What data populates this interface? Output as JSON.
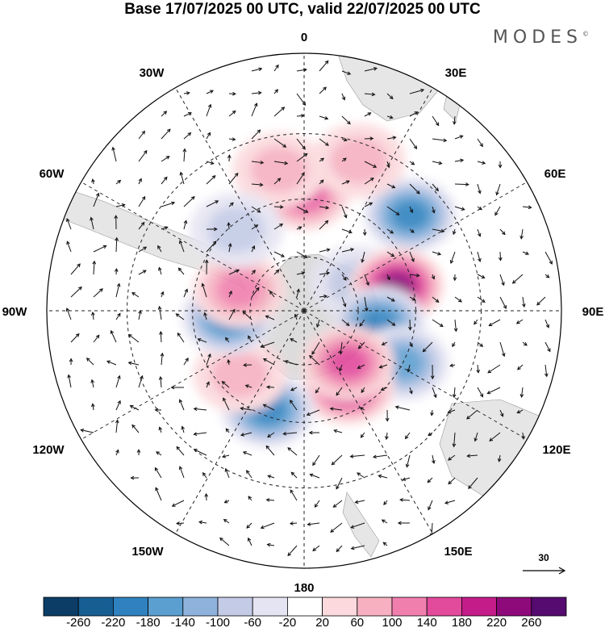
{
  "title": "Base 17/07/2025 00 UTC, valid 22/07/2025 00 UTC",
  "brand": "MODES",
  "brand_mark": "©",
  "meridian_labels": {
    "m0": "0",
    "m30e": "30E",
    "m60e": "60E",
    "m90e": "90E",
    "m120e": "120E",
    "m150e": "150E",
    "m180": "180",
    "m150w": "150W",
    "m120w": "120W",
    "m90w": "90W",
    "m60w": "60W",
    "m30w": "30W"
  },
  "reference_vector": {
    "label": "30"
  },
  "colorbar": {
    "ticks": [
      "-260",
      "-220",
      "-180",
      "-140",
      "-100",
      "-60",
      "-20",
      "20",
      "60",
      "100",
      "140",
      "180",
      "220",
      "260"
    ],
    "colors": [
      "#0b3d66",
      "#175e93",
      "#2f82bf",
      "#5b9fd0",
      "#8fb2dc",
      "#c3cbe6",
      "#e5e4f2",
      "#ffffff",
      "#fbd9dc",
      "#f6b0c0",
      "#f07fae",
      "#e24a9c",
      "#c41c88",
      "#8e0a7a",
      "#560b70"
    ]
  },
  "map": {
    "projection": "south-polar-stereographic",
    "land_color": "#d9d9d9",
    "anomaly_blobs": [
      {
        "lon": 48,
        "lat": -40,
        "value": -180
      },
      {
        "lon": 62,
        "lat": -68,
        "value": -60
      },
      {
        "lon": 75,
        "lat": -55,
        "value": 220
      },
      {
        "lon": 100,
        "lat": -62,
        "value": -180
      },
      {
        "lon": 118,
        "lat": -50,
        "value": -140
      },
      {
        "lon": 150,
        "lat": -58,
        "value": 180
      },
      {
        "lon": 140,
        "lat": -65,
        "value": 140
      },
      {
        "lon": -160,
        "lat": -52,
        "value": -180
      },
      {
        "lon": -135,
        "lat": -57,
        "value": 60
      },
      {
        "lon": -95,
        "lat": -62,
        "value": -180
      },
      {
        "lon": -72,
        "lat": -65,
        "value": 100
      },
      {
        "lon": 0,
        "lat": -48,
        "value": 140
      },
      {
        "lon": -10,
        "lat": -40,
        "value": 60
      },
      {
        "lon": 20,
        "lat": -35,
        "value": 60
      },
      {
        "lon": -40,
        "lat": -52,
        "value": -60
      }
    ]
  }
}
